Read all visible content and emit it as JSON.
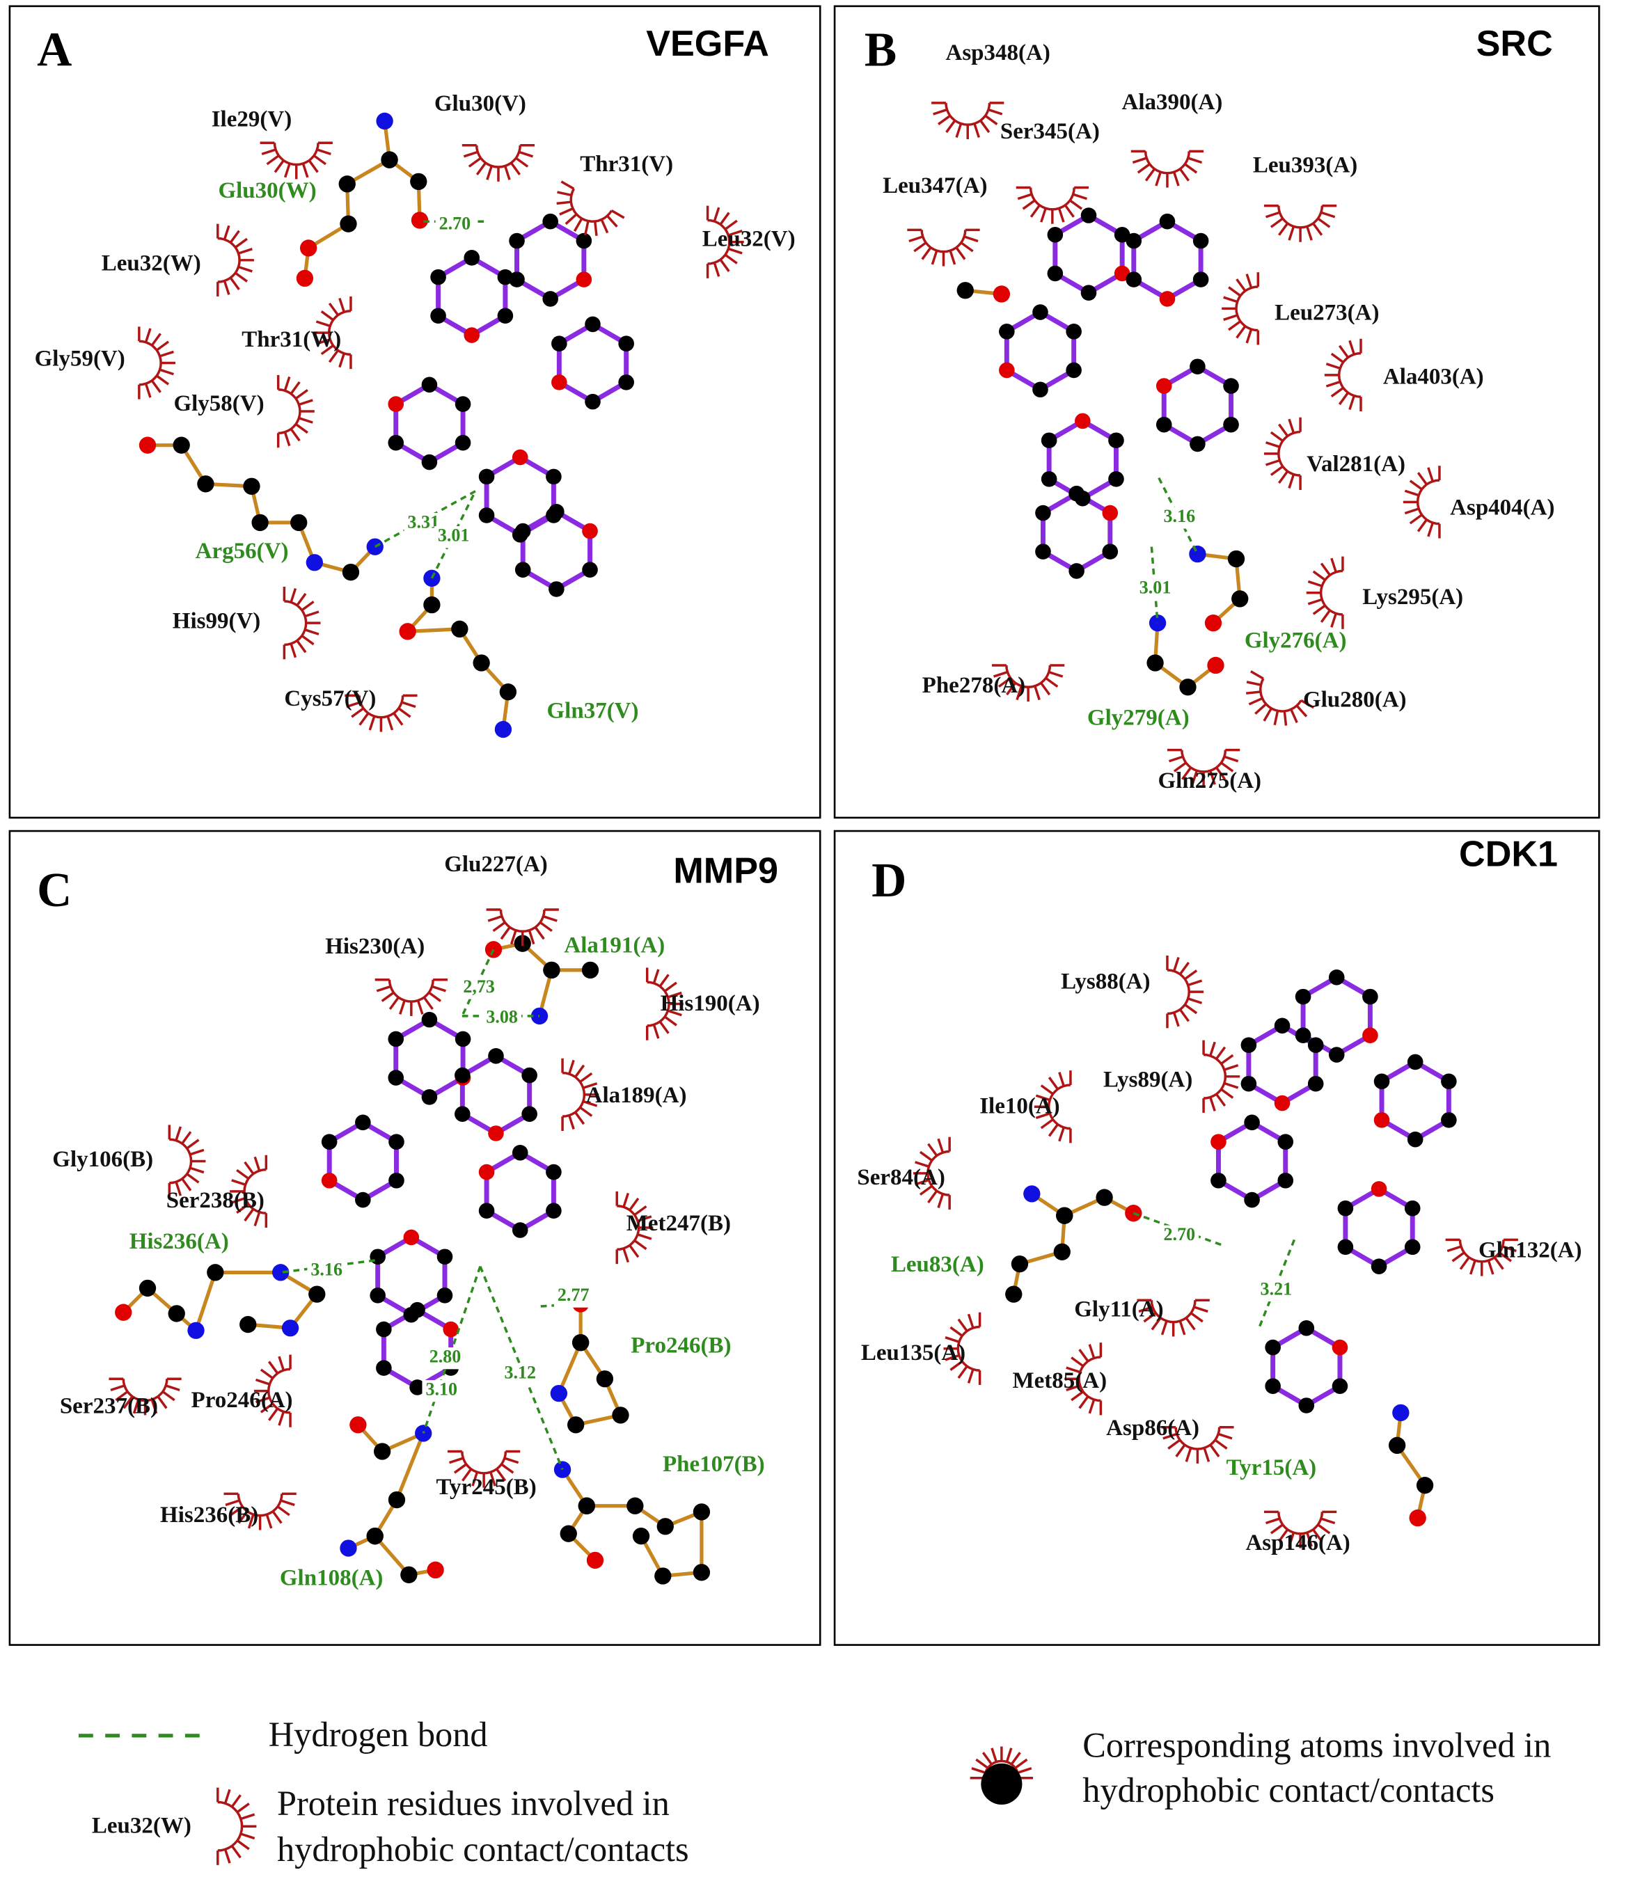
{
  "colors": {
    "hbond": "#2e8b1e",
    "hydrophobic_arc": "#b01515",
    "ligand_bond": "#8a2be2",
    "residue_bond": "#c8861e",
    "oxygen": "#e00000",
    "nitrogen": "#1010e0",
    "carbon": "#000000"
  },
  "panels": [
    {
      "letter": "A",
      "title": "VEGFA",
      "residues": [
        "Ile29(V)",
        "Glu30(V)",
        "Thr31(V)",
        "Leu32(V)",
        "Glu30(W)",
        "Leu32(W)",
        "Thr31(W)",
        "Gly59(V)",
        "Gly58(V)",
        "Arg56(V)",
        "His99(V)",
        "Cys57(V)",
        "Gln37(V)"
      ],
      "hbond_residues": [
        "Glu30(W)",
        "Arg56(V)",
        "Gln37(V)"
      ],
      "distances": [
        "2.70",
        "3.31",
        "3.01"
      ]
    },
    {
      "letter": "B",
      "title": "SRC",
      "residues": [
        "Asp348(A)",
        "Ala390(A)",
        "Ser345(A)",
        "Leu393(A)",
        "Leu347(A)",
        "Leu273(A)",
        "Ala403(A)",
        "Val281(A)",
        "Asp404(A)",
        "Lys295(A)",
        "Gly276(A)",
        "Phe278(A)",
        "Glu280(A)",
        "Gly279(A)",
        "Gln275(A)"
      ],
      "hbond_residues": [
        "Gly276(A)",
        "Gly279(A)"
      ],
      "distances": [
        "3.16",
        "3.01"
      ]
    },
    {
      "letter": "C",
      "title": "MMP9",
      "residues": [
        "Glu227(A)",
        "His230(A)",
        "Ala191(A)",
        "His190(A)",
        "Ala189(A)",
        "Gly106(B)",
        "Ser238(B)",
        "Met247(B)",
        "His236(A)",
        "Pro246(B)",
        "Ser237(B)",
        "Pro246(A)",
        "Tyr245(B)",
        "Phe107(B)",
        "His236(B)",
        "Gln108(A)"
      ],
      "hbond_residues": [
        "Ala191(A)",
        "His236(A)",
        "Pro246(B)",
        "Phe107(B)",
        "Gln108(A)"
      ],
      "distances": [
        "2,73",
        "3.08",
        "3.16",
        "2.77",
        "2.80",
        "3.10",
        "3.12"
      ]
    },
    {
      "letter": "D",
      "title": "CDK1",
      "residues": [
        "Lys88(A)",
        "Lys89(A)",
        "Ile10(A)",
        "Ser84(A)",
        "Gln132(A)",
        "Leu83(A)",
        "Gly11(A)",
        "Leu135(A)",
        "Met85(A)",
        "Asp86(A)",
        "Tyr15(A)",
        "Asp146(A)"
      ],
      "hbond_residues": [
        "Leu83(A)",
        "Tyr15(A)"
      ],
      "distances": [
        "2.70",
        "3.21"
      ]
    }
  ],
  "legend": {
    "hbond_label": "Hydrogen bond",
    "example_residue": "Leu32(W)",
    "residue_label_line1": "Protein residues involved in",
    "residue_label_line2": "hydrophobic contact/contacts",
    "atom_label_line1": "Corresponding atoms involved in",
    "atom_label_line2": "hydrophobic contact/contacts"
  }
}
